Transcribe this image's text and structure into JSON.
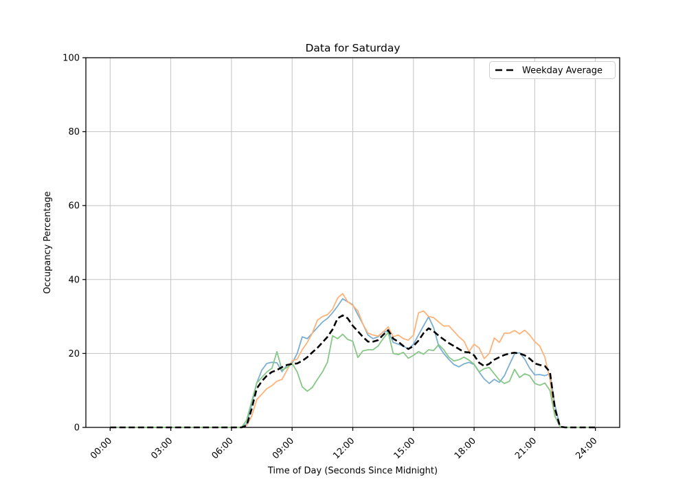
{
  "figure": {
    "title": "Data for Saturday",
    "xlabel": "Time of Day (Seconds Since Midnight)",
    "ylabel": "Occupancy Percentage",
    "legend_label": "Weekday Average"
  },
  "chart_data": {
    "type": "line",
    "title": "Data for Saturday",
    "xlabel": "Time of Day (Seconds Since Midnight)",
    "ylabel": "Occupancy Percentage",
    "grid": true,
    "legend_position": "upper right",
    "legend_entries": [
      "Weekday Average"
    ],
    "x_unit": "hours",
    "x_start": 0,
    "x_step": 0.25,
    "xlim": [
      -1.2,
      25.2
    ],
    "ylim": [
      0,
      100
    ],
    "x_tick_hours": [
      0,
      3,
      6,
      9,
      12,
      15,
      18,
      21,
      24
    ],
    "x_tick_labels": [
      "00:00",
      "03:00",
      "06:00",
      "09:00",
      "12:00",
      "15:00",
      "18:00",
      "21:00",
      "24:00"
    ],
    "y_ticks": [
      0,
      20,
      40,
      60,
      80,
      100
    ],
    "grid_color": "#c2c2c2",
    "series": [
      {
        "name": "saturday-line-1-blue",
        "color": "#79add2",
        "width": 1.8,
        "dash": null,
        "in_legend": false,
        "values": [
          0,
          0,
          0,
          0,
          0,
          0,
          0,
          0,
          0,
          0,
          0,
          0,
          0,
          0,
          0,
          0,
          0,
          0,
          0,
          0,
          0,
          0,
          0,
          0,
          0,
          0,
          0,
          1,
          6,
          12,
          15.5,
          17.3,
          17.6,
          17.5,
          15.1,
          16.8,
          17.4,
          20,
          24.5,
          24,
          25.5,
          27,
          28.5,
          29.5,
          31,
          32.8,
          34.8,
          34,
          33.2,
          30.5,
          28,
          25,
          24,
          24.5,
          25.8,
          26,
          23,
          22.5,
          22,
          21.2,
          22.5,
          25,
          27.5,
          29.9,
          27,
          22,
          20,
          18.4,
          17,
          16.4,
          17.2,
          17.6,
          17,
          15,
          13.1,
          11.9,
          13,
          12.2,
          14,
          17,
          19.9,
          20.2,
          18.5,
          16,
          14.2,
          14.3,
          14,
          14.5,
          6,
          0.2,
          0,
          0,
          0,
          0,
          0,
          0,
          0
        ]
      },
      {
        "name": "saturday-line-2-orange",
        "color": "#ffb277",
        "width": 1.8,
        "dash": null,
        "in_legend": false,
        "values": [
          0,
          0,
          0,
          0,
          0,
          0,
          0,
          0,
          0,
          0,
          0,
          0,
          0,
          0,
          0,
          0,
          0,
          0,
          0,
          0,
          0,
          0,
          0,
          0,
          0,
          0,
          0,
          0.5,
          3,
          7.5,
          9,
          10.5,
          11.3,
          12.5,
          13,
          15.5,
          18,
          18.5,
          21,
          23,
          25.5,
          29,
          30,
          30.5,
          32,
          35,
          36.2,
          34,
          33,
          31.5,
          28,
          25.5,
          25,
          24.7,
          25.8,
          27.2,
          24.5,
          25,
          24,
          23.6,
          25,
          31,
          31.5,
          30,
          29.7,
          28.5,
          27.4,
          27.5,
          26,
          24.5,
          23.3,
          20.5,
          22.5,
          21.5,
          18.6,
          20,
          24.2,
          23,
          25.5,
          25.5,
          26.2,
          25.3,
          26.3,
          25,
          23.2,
          22,
          19,
          13,
          3,
          0.2,
          0,
          0,
          0,
          0,
          0,
          0,
          0
        ]
      },
      {
        "name": "saturday-line-3-green",
        "color": "#85c785",
        "width": 1.8,
        "dash": null,
        "in_legend": false,
        "values": [
          0,
          0,
          0,
          0,
          0,
          0,
          0,
          0,
          0,
          0,
          0,
          0,
          0,
          0,
          0,
          0,
          0,
          0,
          0,
          0,
          0,
          0,
          0,
          0,
          0,
          0,
          0,
          2,
          7,
          12,
          13.5,
          15,
          16,
          20.5,
          15.5,
          16.2,
          17.3,
          15,
          11,
          9.8,
          10.8,
          13,
          15,
          17.7,
          24.8,
          24,
          25.2,
          23.8,
          23.3,
          18.9,
          20.7,
          21,
          21,
          22,
          24,
          25.7,
          20,
          19.7,
          20.3,
          18.7,
          19.5,
          20.5,
          19.8,
          21,
          20.8,
          22.4,
          21,
          19,
          18,
          18.3,
          19,
          18.2,
          17.1,
          15,
          15.9,
          16.2,
          14.5,
          12.8,
          11.9,
          12.5,
          15.7,
          13.5,
          14.5,
          14,
          11.9,
          11.4,
          12,
          10,
          3,
          0.2,
          0,
          0,
          0,
          0,
          0,
          0,
          0
        ]
      },
      {
        "name": "weekday-average",
        "color": "#000000",
        "width": 2.6,
        "dash": "9 4.5",
        "in_legend": true,
        "values": [
          0,
          0,
          0,
          0,
          0,
          0,
          0,
          0,
          0,
          0,
          0,
          0,
          0,
          0,
          0,
          0,
          0,
          0,
          0,
          0,
          0,
          0,
          0,
          0,
          0,
          0,
          0,
          0.5,
          5,
          10.5,
          12.5,
          14,
          15,
          15.5,
          16.3,
          16.9,
          17.2,
          17.3,
          18,
          19,
          20.3,
          21.5,
          23,
          24.5,
          26.5,
          29.5,
          30.3,
          29.5,
          27.5,
          26,
          24.5,
          23.2,
          23.2,
          23.6,
          25,
          26.3,
          24,
          23.2,
          22,
          21.2,
          22,
          23.5,
          25.5,
          26.8,
          26,
          24.8,
          23.8,
          22.8,
          22,
          21.2,
          20.4,
          20.3,
          19.5,
          17.5,
          16.6,
          17.2,
          18.3,
          19,
          19.6,
          20,
          20.2,
          20,
          19.5,
          18.6,
          17.3,
          16.9,
          16.6,
          15,
          5,
          0.2,
          0,
          0,
          0,
          0,
          0,
          0,
          0
        ]
      }
    ]
  }
}
